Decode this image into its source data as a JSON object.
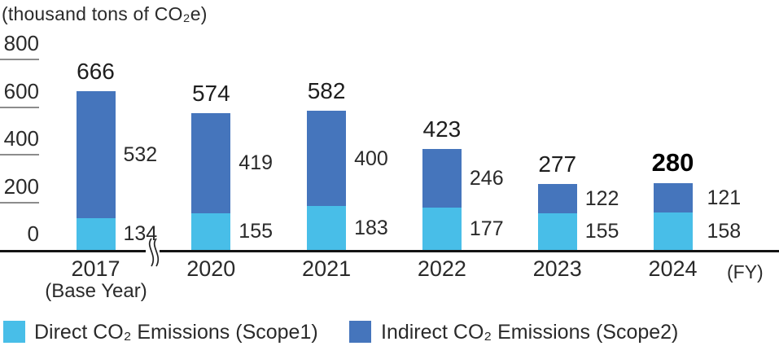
{
  "chart_data": {
    "type": "bar",
    "stacked": true,
    "title": "(thousand tons of CO₂e)",
    "categories": [
      "2017",
      "2020",
      "2021",
      "2022",
      "2023",
      "2024"
    ],
    "first_category_note": "(Base Year)",
    "x_axis_suffix_label": "(FY)",
    "series": [
      {
        "name": "Direct CO₂ Emissions (Scope1)",
        "color": "#48BEE8",
        "values": [
          134,
          155,
          183,
          177,
          155,
          158
        ]
      },
      {
        "name": "Indirect CO₂ Emissions (Scope2)",
        "color": "#4575BC",
        "values": [
          532,
          419,
          400,
          246,
          122,
          121
        ]
      }
    ],
    "totals": [
      666,
      574,
      582,
      423,
      277,
      280
    ],
    "emphasized_total_index": 5,
    "ylim": [
      0,
      800
    ],
    "yticks": [
      0,
      200,
      400,
      600,
      800
    ],
    "grid": false,
    "legend_position": "bottom",
    "axis_break_between": [
      "2017",
      "2020"
    ]
  },
  "colors": {
    "axis_line": "#141414",
    "tick_line": "#8c8c8c",
    "text": "#2a2a2a"
  }
}
